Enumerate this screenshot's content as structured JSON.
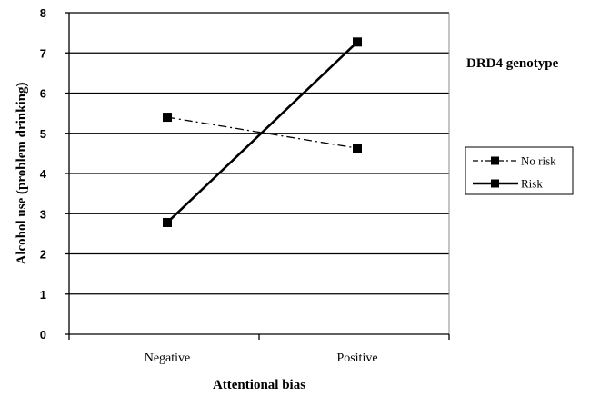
{
  "chart_data": {
    "type": "line",
    "categories": [
      "Negative",
      "Positive"
    ],
    "series": [
      {
        "name": "No risk",
        "values": [
          5.4,
          4.63
        ],
        "style": "dash-dot",
        "color": "#000000"
      },
      {
        "name": "Risk",
        "values": [
          2.78,
          7.27
        ],
        "style": "solid",
        "color": "#000000"
      }
    ],
    "title": "",
    "xlabel": "Attentional bias",
    "ylabel": "Alcohol use (problem drinking)",
    "ylim": [
      0,
      8
    ],
    "yticks": [
      0,
      1,
      2,
      3,
      4,
      5,
      6,
      7,
      8
    ],
    "grid": "horizontal",
    "legend": {
      "title": "DRD4 genotype",
      "placement": "right",
      "entries": [
        "No risk",
        "Risk"
      ]
    }
  }
}
